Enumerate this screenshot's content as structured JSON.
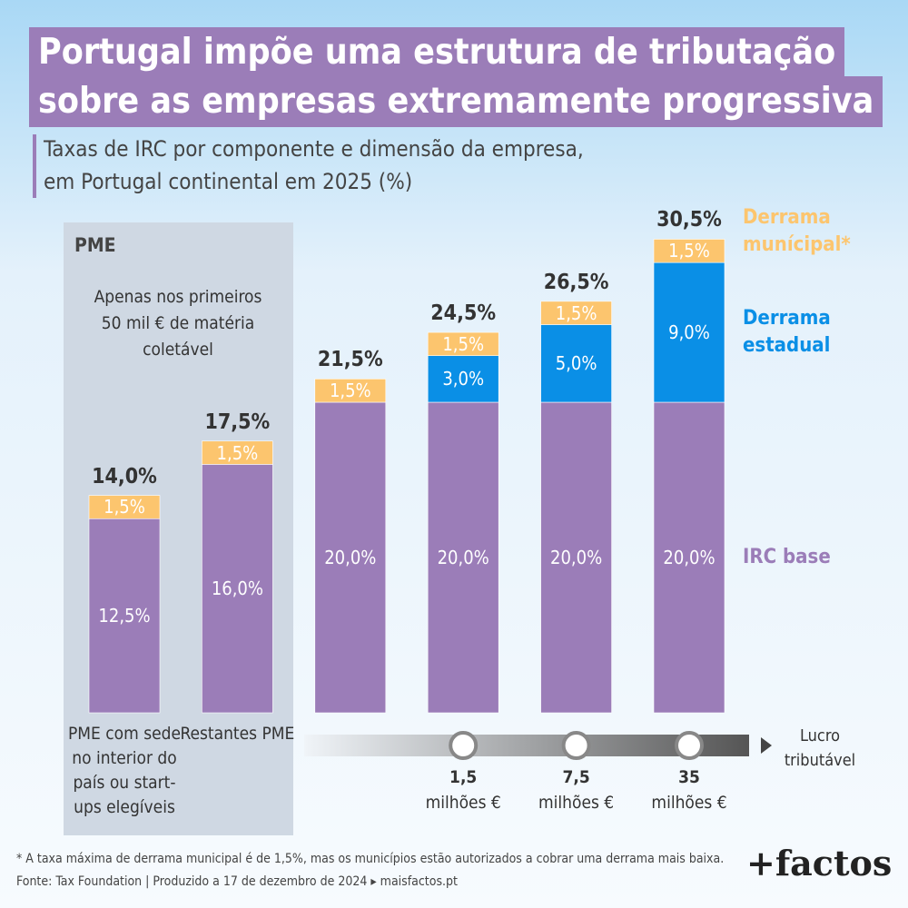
{
  "chart_data": {
    "type": "stacked-bar",
    "title": [
      "Portugal impõe uma estrutura de tributação",
      "sobre as empresas extremamente progressiva"
    ],
    "subtitle": [
      "Taxas de IRC por componente e dimensão da empresa,",
      "em Portugal continental em 2025 (%)"
    ],
    "panel_label": "PME",
    "panel_note": "Apenas nos primeiros 50 mil € de matéria coletável",
    "categories": [
      "PME com sede no interior do país ou start-ups elegíveis",
      "Restantes PME",
      null,
      null,
      null,
      null
    ],
    "series": [
      {
        "name": "IRC base",
        "color": "#9b7db8",
        "values": [
          12.5,
          16,
          20,
          20,
          20,
          20
        ],
        "value_labels": [
          "12,5%",
          "16,0%",
          "20,0%",
          "20,0%",
          "20,0%",
          "20,0%"
        ]
      },
      {
        "name": "Derrama estadual",
        "color": "#0a8fe6",
        "values": [
          null,
          null,
          null,
          3,
          5,
          9
        ],
        "value_labels": [
          null,
          null,
          null,
          "3,0%",
          "5,0%",
          "9,0%"
        ]
      },
      {
        "name": "Derrama munícipal*",
        "color": "#fcc56e",
        "values": [
          1.5,
          1.5,
          1.5,
          1.5,
          1.5,
          1.5
        ],
        "value_labels": [
          "1,5%",
          "1,5%",
          "1,5%",
          "1,5%",
          "1,5%",
          "1,5%"
        ]
      }
    ],
    "totals": [
      14,
      17.5,
      21.5,
      24.5,
      26.5,
      30.5
    ],
    "total_labels": [
      "14,0%",
      "17,5%",
      "21,5%",
      "24,5%",
      "26,5%",
      "30,5%"
    ],
    "x_axis_label": "Lucro tributável",
    "thresholds": [
      "1,5",
      "7,5",
      "35"
    ],
    "threshold_unit": "milhões €",
    "footnote": "* A taxa máxima de derrama municipal é de 1,5%, mas os municípios estão autorizados a cobrar uma derrama mais baixa.",
    "source": "Fonte: Tax Foundation | Produzido a 17 de dezembro de 2024 ▸ maisfactos.pt",
    "logo": "+factos"
  }
}
